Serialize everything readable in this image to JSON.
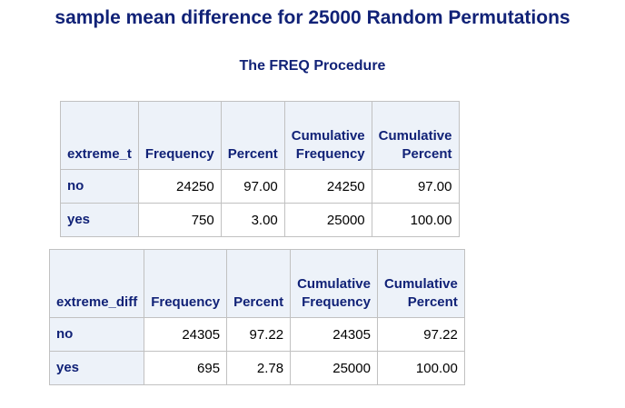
{
  "title": "sample mean difference for 25000 Random Permutations",
  "procedure": "The FREQ Procedure",
  "tables": [
    {
      "headers": {
        "variable": "extreme_t",
        "frequency": "Frequency",
        "percent": "Percent",
        "cum_freq_line1": "Cumulative",
        "cum_freq_line2": "Frequency",
        "cum_pct_line1": "Cumulative",
        "cum_pct_line2": "Percent"
      },
      "rows": [
        {
          "label": "no",
          "frequency": "24250",
          "percent": "97.00",
          "cum_freq": "24250",
          "cum_pct": "97.00"
        },
        {
          "label": "yes",
          "frequency": "750",
          "percent": "3.00",
          "cum_freq": "25000",
          "cum_pct": "100.00"
        }
      ]
    },
    {
      "headers": {
        "variable": "extreme_diff",
        "frequency": "Frequency",
        "percent": "Percent",
        "cum_freq_line1": "Cumulative",
        "cum_freq_line2": "Frequency",
        "cum_pct_line1": "Cumulative",
        "cum_pct_line2": "Percent"
      },
      "rows": [
        {
          "label": "no",
          "frequency": "24305",
          "percent": "97.22",
          "cum_freq": "24305",
          "cum_pct": "97.22"
        },
        {
          "label": "yes",
          "frequency": "695",
          "percent": "2.78",
          "cum_freq": "25000",
          "cum_pct": "100.00"
        }
      ]
    }
  ],
  "colors": {
    "header_text": "#112277",
    "header_bg": "#edf2f9",
    "border": "#c1c1c1",
    "cell_text": "#000000"
  }
}
